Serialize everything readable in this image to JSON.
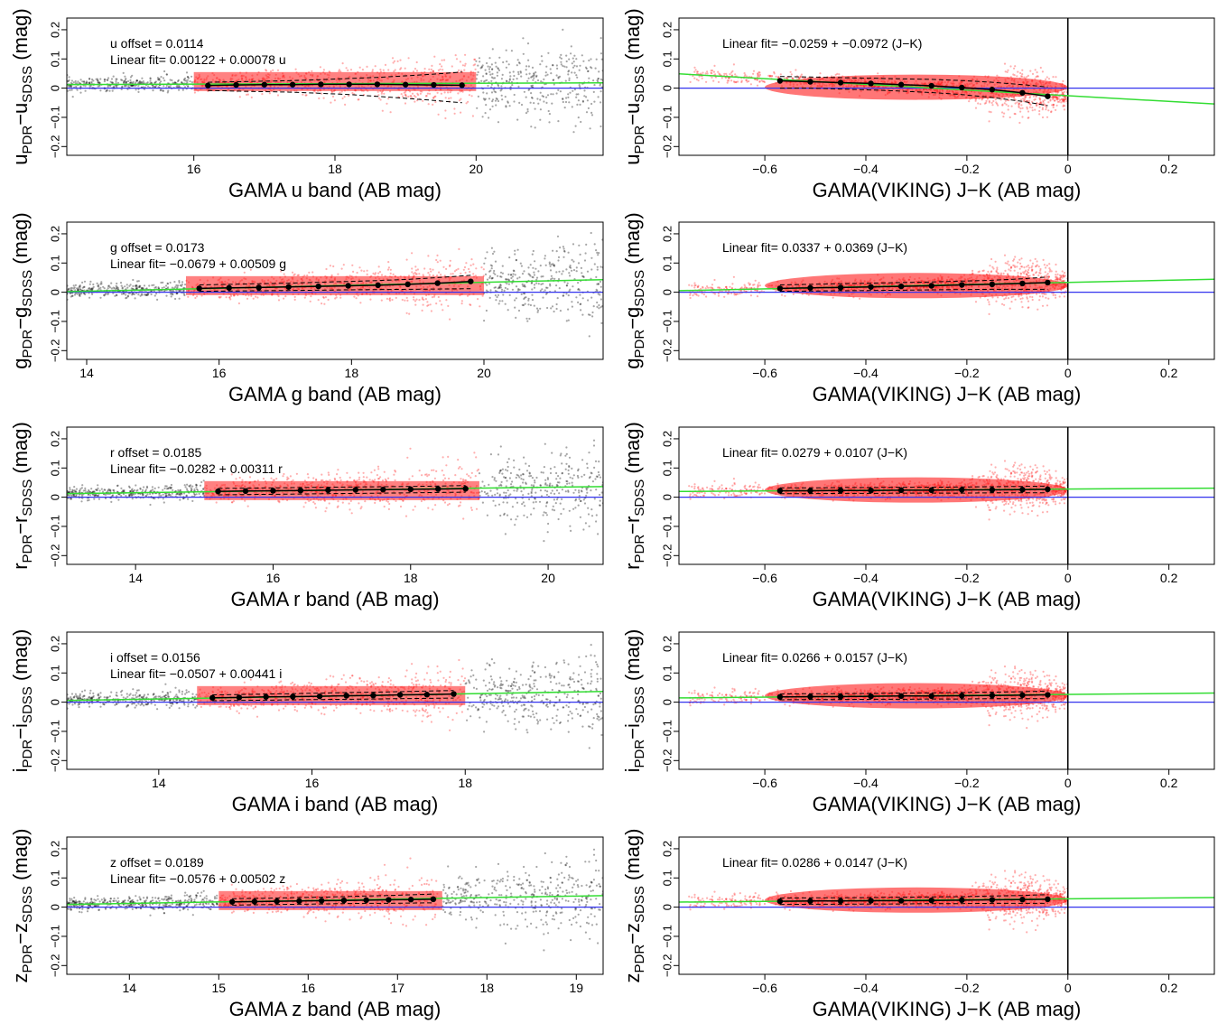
{
  "chart_data": [
    {
      "type": "scatter",
      "band": "u",
      "xlabel": "GAMA u band (AB mag)",
      "ylabel": {
        "main": "u",
        "sub1": "PDR",
        "mid": "−u",
        "sub2": "SDSS",
        "unit": " (mag)"
      },
      "xlim": [
        14.2,
        21.8
      ],
      "ylim": [
        -0.23,
        0.24
      ],
      "xticks": [
        "16",
        "18",
        "20"
      ],
      "xtick_values": [
        16,
        18,
        20
      ],
      "yticks": [
        "−0.2",
        "−0.1",
        "0",
        "0.1",
        "0.2"
      ],
      "ytick_values": [
        -0.2,
        -0.1,
        0,
        0.1,
        0.2
      ],
      "annotations": [
        "u  offset =  0.0114",
        "Linear fit= 0.00122 + 0.00078 u"
      ],
      "fit": {
        "intercept": 0.00122,
        "slope": 0.00078
      },
      "fit_window": [
        16,
        20
      ],
      "binned_x": [
        16.2,
        16.6,
        17.0,
        17.4,
        17.8,
        18.2,
        18.6,
        19.0,
        19.4,
        19.8
      ],
      "binned_y": [
        0.009,
        0.011,
        0.012,
        0.012,
        0.013,
        0.013,
        0.013,
        0.012,
        0.011,
        0.01
      ],
      "spread_lower": [
        -0.008,
        -0.01,
        -0.012,
        -0.014,
        -0.018,
        -0.022,
        -0.028,
        -0.035,
        -0.042,
        -0.05
      ],
      "spread_upper": [
        0.02,
        0.022,
        0.024,
        0.026,
        0.029,
        0.033,
        0.037,
        0.042,
        0.048,
        0.055
      ],
      "reference_line_y": 0,
      "colors": {
        "scatter_all": "#000000",
        "scatter_selected": "#ff1a1a",
        "fit_line": "#33dd33",
        "zero_line": "#3333ee"
      }
    },
    {
      "type": "scatter",
      "band": "u",
      "xlabel": "GAMA(VIKING) J−K (AB mag)",
      "ylabel": {
        "main": "u",
        "sub1": "PDR",
        "mid": "−u",
        "sub2": "SDSS",
        "unit": " (mag)"
      },
      "xlim": [
        -0.77,
        0.29
      ],
      "ylim": [
        -0.23,
        0.24
      ],
      "xticks": [
        "−0.6",
        "−0.4",
        "−0.2",
        "0",
        "0.2"
      ],
      "xtick_values": [
        -0.6,
        -0.4,
        -0.2,
        0,
        0.2
      ],
      "yticks": [
        "−0.2",
        "−0.1",
        "0",
        "0.1",
        "0.2"
      ],
      "ytick_values": [
        -0.2,
        -0.1,
        0,
        0.1,
        0.2
      ],
      "annotations": [
        "Linear fit= −0.0259 + −0.0972 (J−K)"
      ],
      "fit": {
        "intercept": -0.0259,
        "slope": -0.0972
      },
      "binned_x": [
        -0.57,
        -0.51,
        -0.45,
        -0.39,
        -0.33,
        -0.27,
        -0.21,
        -0.15,
        -0.09,
        -0.04
      ],
      "binned_y": [
        0.025,
        0.022,
        0.019,
        0.016,
        0.012,
        0.008,
        0.002,
        -0.005,
        -0.016,
        -0.028
      ],
      "spread_lower": [
        0.0,
        0.0,
        -0.003,
        -0.006,
        -0.01,
        -0.015,
        -0.022,
        -0.032,
        -0.045,
        -0.06
      ],
      "spread_upper": [
        0.04,
        0.038,
        0.036,
        0.034,
        0.032,
        0.03,
        0.026,
        0.02,
        0.012,
        0.004
      ],
      "reference_line_y": 0,
      "vline_x": 0,
      "colors": {
        "scatter_all": "#000000",
        "scatter_selected": "#ff1a1a",
        "fit_line": "#33dd33",
        "zero_line": "#3333ee"
      }
    },
    {
      "type": "scatter",
      "band": "g",
      "xlabel": "GAMA g band (AB mag)",
      "ylabel": {
        "main": "g",
        "sub1": "PDR",
        "mid": "−g",
        "sub2": "SDSS",
        "unit": " (mag)"
      },
      "xlim": [
        13.7,
        21.8
      ],
      "ylim": [
        -0.23,
        0.24
      ],
      "xticks": [
        "14",
        "16",
        "18",
        "20"
      ],
      "xtick_values": [
        14,
        16,
        18,
        20
      ],
      "yticks": [
        "−0.2",
        "−0.1",
        "0",
        "0.1",
        "0.2"
      ],
      "ytick_values": [
        -0.2,
        -0.1,
        0,
        0.1,
        0.2
      ],
      "annotations": [
        "g  offset =  0.0173",
        "Linear fit= −0.0679 + 0.00509 g"
      ],
      "fit": {
        "intercept": -0.0679,
        "slope": 0.00509
      },
      "fit_window": [
        15.5,
        20
      ],
      "binned_x": [
        15.7,
        16.15,
        16.6,
        17.05,
        17.5,
        17.95,
        18.4,
        18.85,
        19.3,
        19.8
      ],
      "binned_y": [
        0.013,
        0.015,
        0.016,
        0.018,
        0.02,
        0.022,
        0.024,
        0.027,
        0.031,
        0.037
      ],
      "spread_lower": [
        0.003,
        0.004,
        0.005,
        0.006,
        0.007,
        0.008,
        0.009,
        0.01,
        0.011,
        0.012
      ],
      "spread_upper": [
        0.025,
        0.027,
        0.029,
        0.031,
        0.034,
        0.037,
        0.04,
        0.044,
        0.05,
        0.058
      ],
      "reference_line_y": 0,
      "colors": {
        "scatter_all": "#000000",
        "scatter_selected": "#ff1a1a",
        "fit_line": "#33dd33",
        "zero_line": "#3333ee"
      }
    },
    {
      "type": "scatter",
      "band": "g",
      "xlabel": "GAMA(VIKING) J−K (AB mag)",
      "ylabel": {
        "main": "g",
        "sub1": "PDR",
        "mid": "−g",
        "sub2": "SDSS",
        "unit": " (mag)"
      },
      "xlim": [
        -0.77,
        0.29
      ],
      "ylim": [
        -0.23,
        0.24
      ],
      "xticks": [
        "−0.6",
        "−0.4",
        "−0.2",
        "0",
        "0.2"
      ],
      "xtick_values": [
        -0.6,
        -0.4,
        -0.2,
        0,
        0.2
      ],
      "yticks": [
        "−0.2",
        "−0.1",
        "0",
        "0.1",
        "0.2"
      ],
      "ytick_values": [
        -0.2,
        -0.1,
        0,
        0.1,
        0.2
      ],
      "annotations": [
        "Linear fit= 0.0337 + 0.0369 (J−K)"
      ],
      "fit": {
        "intercept": 0.0337,
        "slope": 0.0369
      },
      "binned_x": [
        -0.57,
        -0.51,
        -0.45,
        -0.39,
        -0.33,
        -0.27,
        -0.21,
        -0.15,
        -0.09,
        -0.04
      ],
      "binned_y": [
        0.013,
        0.015,
        0.016,
        0.018,
        0.02,
        0.022,
        0.025,
        0.027,
        0.03,
        0.033
      ],
      "spread_lower": [
        0.003,
        0.004,
        0.005,
        0.006,
        0.007,
        0.008,
        0.009,
        0.01,
        0.01,
        0.01
      ],
      "spread_upper": [
        0.025,
        0.027,
        0.029,
        0.031,
        0.033,
        0.035,
        0.038,
        0.041,
        0.046,
        0.052
      ],
      "reference_line_y": 0,
      "vline_x": 0,
      "colors": {
        "scatter_all": "#000000",
        "scatter_selected": "#ff1a1a",
        "fit_line": "#33dd33",
        "zero_line": "#3333ee"
      }
    },
    {
      "type": "scatter",
      "band": "r",
      "xlabel": "GAMA r band (AB mag)",
      "ylabel": {
        "main": "r",
        "sub1": "PDR",
        "mid": "−r",
        "sub2": "SDSS",
        "unit": " (mag)"
      },
      "xlim": [
        13.0,
        20.8
      ],
      "ylim": [
        -0.23,
        0.24
      ],
      "xticks": [
        "14",
        "16",
        "18",
        "20"
      ],
      "xtick_values": [
        14,
        16,
        18,
        20
      ],
      "yticks": [
        "−0.2",
        "−0.1",
        "0",
        "0.1",
        "0.2"
      ],
      "ytick_values": [
        -0.2,
        -0.1,
        0,
        0.1,
        0.2
      ],
      "annotations": [
        "r  offset =  0.0185",
        "Linear fit= −0.0282 + 0.00311 r"
      ],
      "fit": {
        "intercept": -0.0282,
        "slope": 0.00311
      },
      "fit_window": [
        15,
        19
      ],
      "binned_x": [
        15.2,
        15.6,
        16.0,
        16.4,
        16.8,
        17.2,
        17.6,
        18.0,
        18.4,
        18.8
      ],
      "binned_y": [
        0.02,
        0.021,
        0.022,
        0.023,
        0.024,
        0.025,
        0.026,
        0.027,
        0.028,
        0.029
      ],
      "spread_lower": [
        0.008,
        0.009,
        0.01,
        0.011,
        0.012,
        0.013,
        0.014,
        0.015,
        0.016,
        0.017
      ],
      "spread_upper": [
        0.03,
        0.031,
        0.032,
        0.033,
        0.034,
        0.035,
        0.036,
        0.037,
        0.038,
        0.04
      ],
      "reference_line_y": 0,
      "colors": {
        "scatter_all": "#000000",
        "scatter_selected": "#ff1a1a",
        "fit_line": "#33dd33",
        "zero_line": "#3333ee"
      }
    },
    {
      "type": "scatter",
      "band": "r",
      "xlabel": "GAMA(VIKING) J−K (AB mag)",
      "ylabel": {
        "main": "r",
        "sub1": "PDR",
        "mid": "−r",
        "sub2": "SDSS",
        "unit": " (mag)"
      },
      "xlim": [
        -0.77,
        0.29
      ],
      "ylim": [
        -0.23,
        0.24
      ],
      "xticks": [
        "−0.6",
        "−0.4",
        "−0.2",
        "0",
        "0.2"
      ],
      "xtick_values": [
        -0.6,
        -0.4,
        -0.2,
        0,
        0.2
      ],
      "yticks": [
        "−0.2",
        "−0.1",
        "0",
        "0.1",
        "0.2"
      ],
      "ytick_values": [
        -0.2,
        -0.1,
        0,
        0.1,
        0.2
      ],
      "annotations": [
        "Linear fit= 0.0279 + 0.0107 (J−K)"
      ],
      "fit": {
        "intercept": 0.0279,
        "slope": 0.0107
      },
      "binned_x": [
        -0.57,
        -0.51,
        -0.45,
        -0.39,
        -0.33,
        -0.27,
        -0.21,
        -0.15,
        -0.09,
        -0.04
      ],
      "binned_y": [
        0.022,
        0.022,
        0.023,
        0.023,
        0.024,
        0.024,
        0.025,
        0.025,
        0.026,
        0.027
      ],
      "spread_lower": [
        0.012,
        0.012,
        0.013,
        0.013,
        0.014,
        0.014,
        0.014,
        0.015,
        0.015,
        0.015
      ],
      "spread_upper": [
        0.032,
        0.032,
        0.033,
        0.033,
        0.034,
        0.034,
        0.035,
        0.036,
        0.037,
        0.038
      ],
      "reference_line_y": 0,
      "vline_x": 0,
      "colors": {
        "scatter_all": "#000000",
        "scatter_selected": "#ff1a1a",
        "fit_line": "#33dd33",
        "zero_line": "#3333ee"
      }
    },
    {
      "type": "scatter",
      "band": "i",
      "xlabel": "GAMA i band (AB mag)",
      "ylabel": {
        "main": "i",
        "sub1": "PDR",
        "mid": "−i",
        "sub2": "SDSS",
        "unit": " (mag)"
      },
      "xlim": [
        12.8,
        19.8
      ],
      "ylim": [
        -0.23,
        0.24
      ],
      "xticks": [
        "14",
        "16",
        "18"
      ],
      "xtick_values": [
        14,
        16,
        18
      ],
      "yticks": [
        "−0.2",
        "−0.1",
        "0",
        "0.1",
        "0.2"
      ],
      "ytick_values": [
        -0.2,
        -0.1,
        0,
        0.1,
        0.2
      ],
      "annotations": [
        "i  offset =  0.0156",
        "Linear fit= −0.0507 + 0.00441 i"
      ],
      "fit": {
        "intercept": -0.0507,
        "slope": 0.00441
      },
      "fit_window": [
        14.5,
        18
      ],
      "binned_x": [
        14.7,
        15.05,
        15.4,
        15.75,
        16.1,
        16.45,
        16.8,
        17.15,
        17.5,
        17.85
      ],
      "binned_y": [
        0.015,
        0.016,
        0.018,
        0.019,
        0.02,
        0.022,
        0.023,
        0.025,
        0.026,
        0.028
      ],
      "spread_lower": [
        0.005,
        0.006,
        0.007,
        0.008,
        0.009,
        0.01,
        0.011,
        0.012,
        0.013,
        0.014
      ],
      "spread_upper": [
        0.025,
        0.026,
        0.028,
        0.029,
        0.031,
        0.033,
        0.034,
        0.036,
        0.038,
        0.04
      ],
      "reference_line_y": 0,
      "colors": {
        "scatter_all": "#000000",
        "scatter_selected": "#ff1a1a",
        "fit_line": "#33dd33",
        "zero_line": "#3333ee"
      }
    },
    {
      "type": "scatter",
      "band": "i",
      "xlabel": "GAMA(VIKING) J−K (AB mag)",
      "ylabel": {
        "main": "i",
        "sub1": "PDR",
        "mid": "−i",
        "sub2": "SDSS",
        "unit": " (mag)"
      },
      "xlim": [
        -0.77,
        0.29
      ],
      "ylim": [
        -0.23,
        0.24
      ],
      "xticks": [
        "−0.6",
        "−0.4",
        "−0.2",
        "0",
        "0.2"
      ],
      "xtick_values": [
        -0.6,
        -0.4,
        -0.2,
        0,
        0.2
      ],
      "yticks": [
        "−0.2",
        "−0.1",
        "0",
        "0.1",
        "0.2"
      ],
      "ytick_values": [
        -0.2,
        -0.1,
        0,
        0.1,
        0.2
      ],
      "annotations": [
        "Linear fit= 0.0266 + 0.0157 (J−K)"
      ],
      "fit": {
        "intercept": 0.0266,
        "slope": 0.0157
      },
      "binned_x": [
        -0.57,
        -0.51,
        -0.45,
        -0.39,
        -0.33,
        -0.27,
        -0.21,
        -0.15,
        -0.09,
        -0.04
      ],
      "binned_y": [
        0.018,
        0.019,
        0.019,
        0.02,
        0.021,
        0.021,
        0.022,
        0.023,
        0.024,
        0.025
      ],
      "spread_lower": [
        0.008,
        0.009,
        0.009,
        0.01,
        0.01,
        0.011,
        0.011,
        0.012,
        0.012,
        0.012
      ],
      "spread_upper": [
        0.028,
        0.029,
        0.029,
        0.03,
        0.031,
        0.032,
        0.033,
        0.034,
        0.036,
        0.038
      ],
      "reference_line_y": 0,
      "vline_x": 0,
      "colors": {
        "scatter_all": "#000000",
        "scatter_selected": "#ff1a1a",
        "fit_line": "#33dd33",
        "zero_line": "#3333ee"
      }
    },
    {
      "type": "scatter",
      "band": "z",
      "xlabel": "GAMA z band (AB mag)",
      "ylabel": {
        "main": "z",
        "sub1": "PDR",
        "mid": "−z",
        "sub2": "SDSS",
        "unit": " (mag)"
      },
      "xlim": [
        13.3,
        19.3
      ],
      "ylim": [
        -0.23,
        0.24
      ],
      "xticks": [
        "14",
        "15",
        "16",
        "17",
        "18",
        "19"
      ],
      "xtick_values": [
        14,
        15,
        16,
        17,
        18,
        19
      ],
      "yticks": [
        "−0.2",
        "−0.1",
        "0",
        "0.1",
        "0.2"
      ],
      "ytick_values": [
        -0.2,
        -0.1,
        0,
        0.1,
        0.2
      ],
      "annotations": [
        "z  offset =  0.0189",
        "Linear fit= −0.0576 + 0.00502 z"
      ],
      "fit": {
        "intercept": -0.0576,
        "slope": 0.00502
      },
      "fit_window": [
        15,
        17.5
      ],
      "binned_x": [
        15.15,
        15.4,
        15.65,
        15.9,
        16.15,
        16.4,
        16.65,
        16.9,
        17.15,
        17.4
      ],
      "binned_y": [
        0.018,
        0.019,
        0.02,
        0.021,
        0.022,
        0.023,
        0.024,
        0.025,
        0.026,
        0.027
      ],
      "spread_lower": [
        0.007,
        0.008,
        0.009,
        0.01,
        0.011,
        0.012,
        0.013,
        0.013,
        0.014,
        0.015
      ],
      "spread_upper": [
        0.029,
        0.03,
        0.031,
        0.033,
        0.034,
        0.036,
        0.038,
        0.04,
        0.042,
        0.045
      ],
      "reference_line_y": 0,
      "colors": {
        "scatter_all": "#000000",
        "scatter_selected": "#ff1a1a",
        "fit_line": "#33dd33",
        "zero_line": "#3333ee"
      }
    },
    {
      "type": "scatter",
      "band": "z",
      "xlabel": "GAMA(VIKING) J−K (AB mag)",
      "ylabel": {
        "main": "z",
        "sub1": "PDR",
        "mid": "−z",
        "sub2": "SDSS",
        "unit": " (mag)"
      },
      "xlim": [
        -0.77,
        0.29
      ],
      "ylim": [
        -0.23,
        0.24
      ],
      "xticks": [
        "−0.6",
        "−0.4",
        "−0.2",
        "0",
        "0.2"
      ],
      "xtick_values": [
        -0.6,
        -0.4,
        -0.2,
        0,
        0.2
      ],
      "yticks": [
        "−0.2",
        "−0.1",
        "0",
        "0.1",
        "0.2"
      ],
      "ytick_values": [
        -0.2,
        -0.1,
        0,
        0.1,
        0.2
      ],
      "annotations": [
        "Linear fit= 0.0286 + 0.0147 (J−K)"
      ],
      "fit": {
        "intercept": 0.0286,
        "slope": 0.0147
      },
      "binned_x": [
        -0.57,
        -0.51,
        -0.45,
        -0.39,
        -0.33,
        -0.27,
        -0.21,
        -0.15,
        -0.09,
        -0.04
      ],
      "binned_y": [
        0.02,
        0.021,
        0.021,
        0.022,
        0.022,
        0.023,
        0.024,
        0.025,
        0.026,
        0.027
      ],
      "spread_lower": [
        0.009,
        0.01,
        0.01,
        0.011,
        0.011,
        0.012,
        0.012,
        0.013,
        0.013,
        0.013
      ],
      "spread_upper": [
        0.031,
        0.032,
        0.032,
        0.033,
        0.034,
        0.035,
        0.036,
        0.038,
        0.04,
        0.043
      ],
      "reference_line_y": 0,
      "vline_x": 0,
      "colors": {
        "scatter_all": "#000000",
        "scatter_selected": "#ff1a1a",
        "fit_line": "#33dd33",
        "zero_line": "#3333ee"
      }
    }
  ]
}
